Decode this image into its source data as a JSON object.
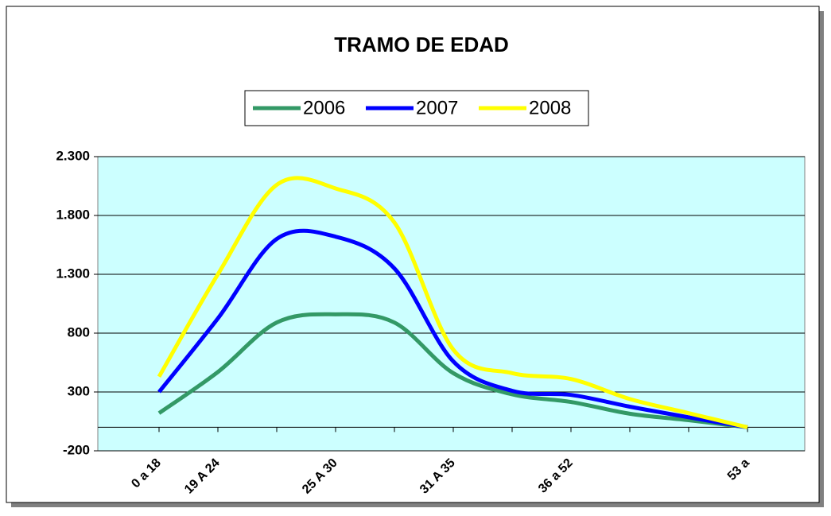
{
  "chart_data": {
    "type": "line",
    "title": "TRAMO DE EDAD",
    "categories": [
      "0 a 18",
      "19 A 24",
      null,
      "25 A 30",
      null,
      "31 A 35",
      null,
      "36 a 52",
      null,
      null,
      "53 a"
    ],
    "series": [
      {
        "name": "2006",
        "color": "#339966",
        "values": [
          120,
          470,
          890,
          960,
          890,
          460,
          280,
          215,
          115,
          60,
          0
        ]
      },
      {
        "name": "2007",
        "color": "#0000ff",
        "values": [
          300,
          925,
          1600,
          1620,
          1350,
          560,
          310,
          275,
          175,
          85,
          0
        ]
      },
      {
        "name": "2008",
        "color": "#ffff00",
        "values": [
          430,
          1300,
          2060,
          2030,
          1740,
          660,
          460,
          410,
          240,
          120,
          0
        ]
      }
    ],
    "ylim": [
      -200,
      2300
    ],
    "yticks": [
      -200,
      300,
      800,
      {
        "value": 1300,
        "label": "1.300"
      },
      {
        "value": 1800,
        "label": "1.800"
      },
      {
        "value": 2300,
        "label": "2.300"
      }
    ],
    "grid": true,
    "legend": "top"
  }
}
